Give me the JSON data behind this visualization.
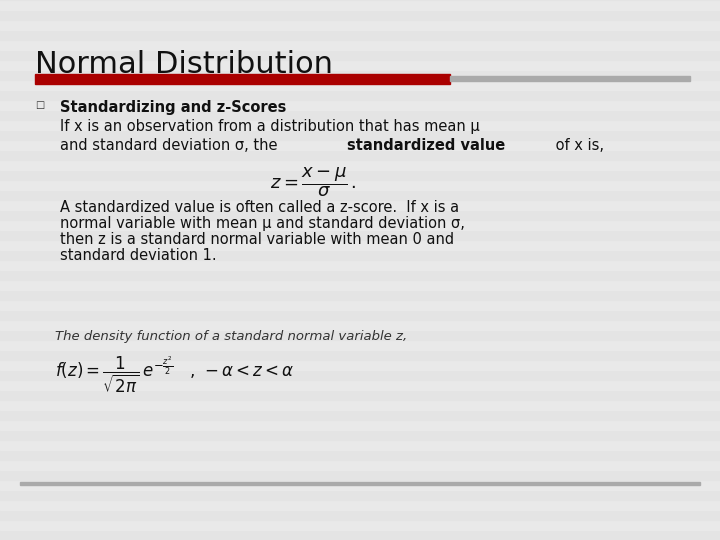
{
  "title": "Normal Distribution",
  "title_fontsize": 22,
  "title_color": "#111111",
  "slide_bg": "#e8e8e8",
  "red_bar_color": "#aa0000",
  "gray_bar_color": "#aaaaaa",
  "bullet_char": "□",
  "bullet_bold": "Standardizing and z-Scores",
  "line1": "If x is an observation from a distribution that has mean μ",
  "line2_normal": "and standard deviation σ, the ",
  "line2_bold": "standardized value",
  "line2_end": " of x is,",
  "para2_line1": "A standardized value is often called a z-score.  If x is a",
  "para2_line2": "normal variable with mean μ and standard deviation σ,",
  "para2_line3": "then z is a standard normal variable with mean 0 and",
  "para2_line4": "standard deviation 1.",
  "italic_line": "The density function of a standard normal variable z,",
  "body_fontsize": 10.5,
  "italic_fontsize": 9.5,
  "stripe_colors": [
    "#e4e4e4",
    "#e9e9e9"
  ]
}
